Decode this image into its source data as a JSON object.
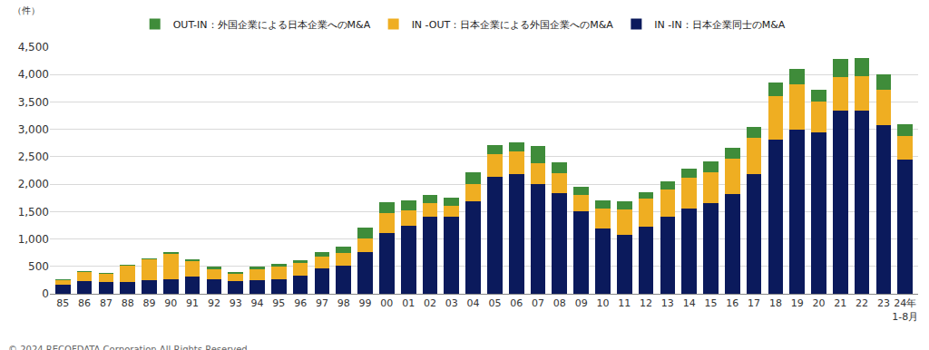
{
  "chart_data": {
    "type": "bar",
    "stacked": true,
    "grid": true,
    "legend": "top",
    "y_label": "（件）",
    "annotations": [
      "© 2024 RECOFDATA Corporation All Rights Reserved."
    ],
    "categories": [
      "85",
      "86",
      "87",
      "88",
      "89",
      "90",
      "91",
      "92",
      "93",
      "94",
      "95",
      "96",
      "97",
      "98",
      "99",
      "00",
      "01",
      "02",
      "03",
      "04",
      "05",
      "06",
      "07",
      "08",
      "09",
      "10",
      "11",
      "12",
      "13",
      "14",
      "15",
      "16",
      "17",
      "18",
      "19",
      "20",
      "21",
      "22",
      "23",
      "24年\n1-8月"
    ],
    "series": [
      {
        "name": "IN -IN：日本企業同士のM&A",
        "color": "#0b1a5c",
        "values": [
          160,
          225,
          215,
          220,
          240,
          260,
          310,
          260,
          230,
          240,
          260,
          330,
          460,
          510,
          760,
          1110,
          1240,
          1400,
          1400,
          1680,
          2140,
          2180,
          2010,
          1830,
          1510,
          1190,
          1080,
          1220,
          1400,
          1560,
          1650,
          1820,
          2180,
          2820,
          3000,
          2950,
          3340,
          3340,
          3070,
          2450
        ]
      },
      {
        "name": "IN -OUT：日本企業による外国企業へのM&A",
        "color": "#efae22",
        "values": [
          90,
          180,
          150,
          290,
          390,
          460,
          280,
          190,
          140,
          200,
          230,
          230,
          220,
          240,
          250,
          370,
          290,
          260,
          210,
          330,
          410,
          410,
          380,
          370,
          300,
          370,
          460,
          520,
          500,
          560,
          560,
          640,
          670,
          780,
          830,
          560,
          620,
          630,
          660,
          430
        ]
      },
      {
        "name": "OUT-IN：外国企業による日本企業へのM&A",
        "color": "#3f8c3a",
        "values": [
          15,
          15,
          20,
          20,
          20,
          35,
          40,
          40,
          30,
          60,
          50,
          60,
          80,
          110,
          200,
          190,
          170,
          140,
          150,
          200,
          170,
          180,
          300,
          200,
          140,
          140,
          140,
          110,
          150,
          170,
          210,
          200,
          200,
          250,
          270,
          220,
          320,
          330,
          280,
          210
        ]
      }
    ],
    "ylim": [
      0,
      4500
    ],
    "yticks": [
      0,
      500,
      {
        "value": 1000,
        "label": "1,000"
      },
      {
        "value": 1500,
        "label": "1,500"
      },
      {
        "value": 2000,
        "label": "2,000"
      },
      {
        "value": 2500,
        "label": "2,500"
      },
      {
        "value": 3000,
        "label": "3,000"
      },
      {
        "value": 3500,
        "label": "3,500"
      },
      {
        "value": 4000,
        "label": "4,000"
      },
      {
        "value": 4500,
        "label": "4,500"
      }
    ]
  }
}
